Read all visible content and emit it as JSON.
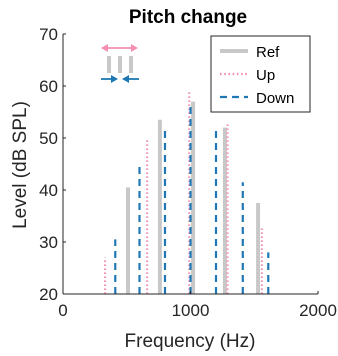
{
  "chart_data": {
    "type": "bar",
    "title": "Pitch change",
    "xlabel": "Frequency (Hz)",
    "ylabel": "Level (dB SPL)",
    "xlim": [
      0,
      2000
    ],
    "ylim": [
      20,
      70
    ],
    "xticks": [
      "0",
      "1000",
      "2000"
    ],
    "yticks": [
      "20",
      "30",
      "40",
      "50",
      "60",
      "70"
    ],
    "grid": false,
    "legend_position": "top-right",
    "series": [
      {
        "name": "Ref",
        "style": "solid",
        "color": "#c8c8c8",
        "x": [
          510,
          760,
          1020,
          1270,
          1530
        ],
        "values": [
          40.5,
          53.5,
          57.0,
          52.0,
          37.5
        ]
      },
      {
        "name": "Up",
        "style": "dotted",
        "color": "#f48fb1",
        "x": [
          330,
          660,
          990,
          1290,
          1560
        ],
        "values": [
          27.0,
          50.0,
          59.0,
          53.0,
          33.0
        ]
      },
      {
        "name": "Down",
        "style": "dashed",
        "color": "#1f78b4",
        "x": [
          410,
          600,
          800,
          1000,
          1200,
          1410,
          1610
        ],
        "values": [
          30.5,
          44.5,
          51.5,
          56.0,
          51.5,
          41.5,
          28.0
        ]
      }
    ]
  },
  "inset": {
    "arrow_color_up": "#f48fb1",
    "arrow_color_down": "#1f78b4",
    "bar_color": "#c8c8c8"
  }
}
